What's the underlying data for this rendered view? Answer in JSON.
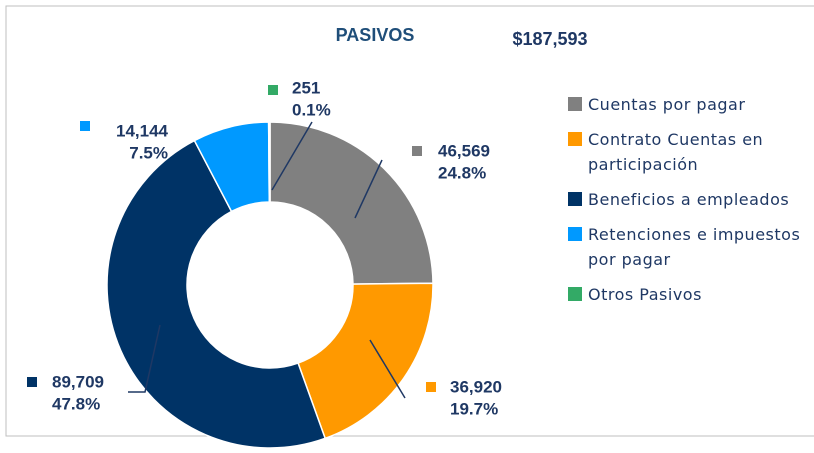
{
  "chart_data": {
    "type": "donut",
    "title": "PASIVOS",
    "total_label": "$187,593",
    "series": [
      {
        "name": "Cuentas por pagar",
        "color": "#808080"
      },
      {
        "name": "Contrato Cuentas en participación",
        "color": "#ff9900"
      },
      {
        "name": "Beneficios a empleados",
        "color": "#003366"
      },
      {
        "name": "Retenciones e impuestos por pagar",
        "color": "#0099ff"
      },
      {
        "name": "Otros Pasivos",
        "color": "#33aa66"
      }
    ],
    "values": [
      46569,
      36920,
      89709,
      14144,
      251
    ],
    "value_labels": [
      "46,569",
      "36,920",
      "89,709",
      "14,144",
      "251"
    ],
    "percentages": [
      24.8,
      19.7,
      47.8,
      7.5,
      0.1
    ],
    "percentage_labels": [
      "24.8%",
      "19.7%",
      "47.8%",
      "7.5%",
      "0.1%"
    ],
    "legend": "right"
  }
}
